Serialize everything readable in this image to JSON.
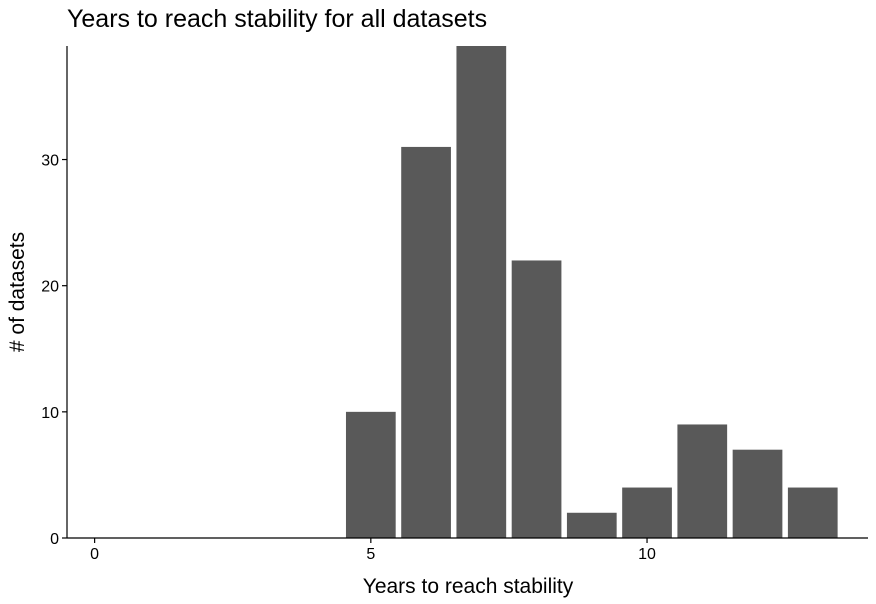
{
  "chart_data": {
    "type": "bar",
    "title": "Years to reach stability for all datasets",
    "xlabel": "Years to reach stability",
    "ylabel": "# of datasets",
    "x": [
      5,
      6,
      7,
      8,
      9,
      10,
      11,
      12,
      13
    ],
    "values": [
      10,
      31,
      39,
      22,
      2,
      4,
      9,
      7,
      4
    ],
    "xlim": [
      -0.5,
      14
    ],
    "ylim": [
      0,
      39
    ],
    "x_ticks": [
      0,
      5,
      10
    ],
    "x_tick_labels": [
      "0",
      "5",
      "10"
    ],
    "y_ticks": [
      0,
      10,
      20,
      30
    ],
    "y_tick_labels": [
      "0",
      "10",
      "20",
      "30"
    ],
    "bar_color": "#595959",
    "grid": false,
    "legend": "none"
  }
}
